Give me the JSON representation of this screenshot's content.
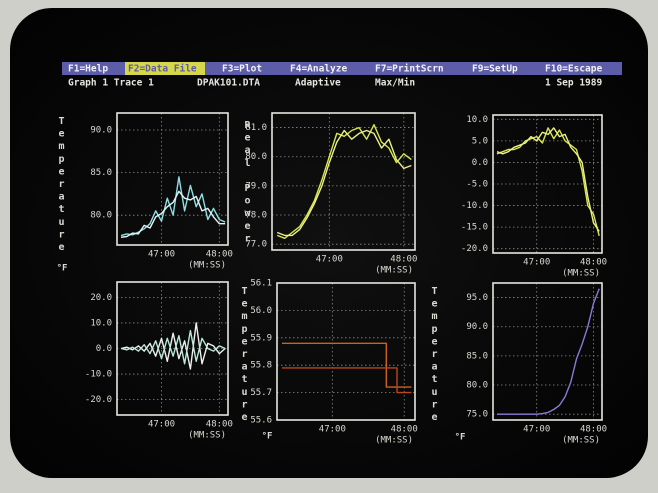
{
  "menu": {
    "items": [
      "F1=Help",
      "F2=Data File",
      "F3=Plot",
      "F4=Analyze",
      "F7=PrintScrn",
      "F9=SetUp",
      "F10=Escape"
    ],
    "active": 1
  },
  "status": [
    "Graph 1 Trace 1",
    "DPAK101.DTA",
    "Adaptive",
    "Max/Min",
    "1 Sep 1989"
  ],
  "chart_data": [
    {
      "type": "line",
      "ylabel": "Temperature",
      "yunit": "°F",
      "xlabel": "(MM:SS)",
      "x": [
        46.3,
        46.4,
        46.5,
        46.6,
        46.7,
        46.8,
        46.9,
        47.0,
        47.1,
        47.2,
        47.3,
        47.4,
        47.5,
        47.6,
        47.7,
        47.8,
        47.9,
        48.0,
        48.1
      ],
      "xlim": [
        46.23,
        48.15
      ],
      "xticks": [
        {
          "value": 47,
          "label": "47:00"
        },
        {
          "value": 48,
          "label": "48:00"
        }
      ],
      "ylim": [
        76.5,
        92
      ],
      "yticks": [
        {
          "value": 90,
          "label": "90.0"
        },
        {
          "value": 85,
          "label": "85.0"
        },
        {
          "value": 80,
          "label": "80.0"
        }
      ],
      "grid": true,
      "series": [
        {
          "color": "#8fe0e6",
          "values": [
            77.6,
            77.8,
            77.7,
            78.0,
            78.4,
            79.0,
            80.5,
            79.3,
            82.0,
            80.0,
            84.5,
            80.5,
            83.5,
            81.0,
            82.5,
            79.5,
            80.8,
            79.5,
            79.2
          ]
        },
        {
          "color": "#e8f4f4",
          "values": [
            77.4,
            77.5,
            77.9,
            77.8,
            78.8,
            78.5,
            79.8,
            80.2,
            81.0,
            81.5,
            82.8,
            82.0,
            81.8,
            82.2,
            80.5,
            80.8,
            79.8,
            79.0,
            79.0
          ]
        }
      ]
    },
    {
      "type": "line",
      "ylabel": "Real Power",
      "xlabel": "(MM:SS)",
      "x": [
        46.3,
        46.4,
        46.5,
        46.6,
        46.7,
        46.8,
        46.9,
        47.0,
        47.1,
        47.2,
        47.3,
        47.4,
        47.5,
        47.6,
        47.7,
        47.8,
        47.9,
        48.0,
        48.1
      ],
      "xlim": [
        46.23,
        48.15
      ],
      "xticks": [
        {
          "value": 47,
          "label": "47:00"
        },
        {
          "value": 48,
          "label": "48:00"
        }
      ],
      "ylim": [
        76.8,
        81.5
      ],
      "yticks": [
        {
          "value": 81,
          "label": "81.0"
        },
        {
          "value": 80,
          "label": "80.0"
        },
        {
          "value": 79,
          "label": "79.0"
        },
        {
          "value": 78,
          "label": "78.0"
        },
        {
          "value": 77,
          "label": "77.0"
        }
      ],
      "grid": true,
      "series": [
        {
          "color": "#d8e84a",
          "values": [
            77.3,
            77.2,
            77.4,
            77.6,
            78.0,
            78.5,
            79.2,
            80.0,
            80.8,
            80.7,
            80.9,
            81.0,
            80.6,
            81.1,
            80.5,
            80.3,
            79.8,
            80.1,
            79.9
          ]
        },
        {
          "color": "#eef08a",
          "values": [
            77.4,
            77.3,
            77.3,
            77.5,
            77.9,
            78.4,
            79.0,
            79.8,
            80.5,
            80.9,
            80.6,
            80.8,
            80.9,
            80.8,
            80.3,
            80.6,
            79.9,
            79.6,
            79.7
          ]
        }
      ]
    },
    {
      "type": "line",
      "xlabel": "(MM:SS)",
      "x": [
        46.3,
        46.4,
        46.5,
        46.6,
        46.7,
        46.8,
        46.9,
        47.0,
        47.1,
        47.2,
        47.3,
        47.4,
        47.5,
        47.6,
        47.7,
        47.8,
        47.9,
        48.0,
        48.1
      ],
      "xlim": [
        46.23,
        48.15
      ],
      "xticks": [
        {
          "value": 47,
          "label": "47:00"
        },
        {
          "value": 48,
          "label": "48:00"
        }
      ],
      "ylim": [
        -21,
        11
      ],
      "yticks": [
        {
          "value": 10,
          "label": "10.0"
        },
        {
          "value": 5,
          "label": "5.0"
        },
        {
          "value": 0,
          "label": "0.0"
        },
        {
          "value": -5,
          "label": "-5.0"
        },
        {
          "value": -10,
          "label": "-10.0"
        },
        {
          "value": -15,
          "label": "-15.0"
        },
        {
          "value": -20,
          "label": "-20.0"
        }
      ],
      "grid": true,
      "series": [
        {
          "color": "#d8e84a",
          "values": [
            2.0,
            2.5,
            3.0,
            3.0,
            3.5,
            5.0,
            5.5,
            6.0,
            4.5,
            8.0,
            5.5,
            7.5,
            5.0,
            4.0,
            3.0,
            -2.0,
            -10.0,
            -12.0,
            -17.0
          ]
        },
        {
          "color": "#eef08a",
          "values": [
            2.5,
            2.0,
            2.5,
            3.5,
            4.0,
            4.5,
            6.0,
            5.0,
            7.0,
            6.5,
            8.0,
            6.0,
            6.5,
            3.5,
            2.0,
            0.0,
            -8.0,
            -14.0,
            -16.0
          ]
        }
      ]
    },
    {
      "type": "line",
      "xlabel": "(MM:SS)",
      "x": [
        46.3,
        46.4,
        46.5,
        46.6,
        46.7,
        46.8,
        46.9,
        47.0,
        47.1,
        47.2,
        47.3,
        47.4,
        47.5,
        47.6,
        47.7,
        47.8,
        47.9,
        48.0,
        48.1
      ],
      "xlim": [
        46.23,
        48.15
      ],
      "xticks": [
        {
          "value": 47,
          "label": "47:00"
        },
        {
          "value": 48,
          "label": "48:00"
        }
      ],
      "ylim": [
        -26,
        26
      ],
      "yticks": [
        {
          "value": 20,
          "label": "20.0"
        },
        {
          "value": 10,
          "label": "10.0"
        },
        {
          "value": 0,
          "label": "0.0"
        },
        {
          "value": -10,
          "label": "-10.0"
        },
        {
          "value": -20,
          "label": "-20.0"
        }
      ],
      "grid": true,
      "series": [
        {
          "color": "#f0f0f0",
          "values": [
            0,
            0.5,
            -0.5,
            1,
            -1,
            2,
            -3,
            4,
            -5,
            6,
            -4,
            3,
            -8,
            10,
            -6,
            2,
            1,
            -2,
            0
          ]
        },
        {
          "color": "#b8e8d8",
          "values": [
            0,
            -0.5,
            0.5,
            -1,
            1.5,
            -2,
            3,
            -4,
            4,
            -3,
            5,
            -6,
            7,
            -5,
            4,
            0,
            -1,
            1,
            0
          ]
        }
      ]
    },
    {
      "type": "line",
      "ylabel": "Temperature",
      "yunit": "°F",
      "xlabel": "(MM:SS)",
      "x": [
        46.3,
        47.75,
        47.75,
        47.9,
        47.9,
        48.1
      ],
      "xlim": [
        46.23,
        48.15
      ],
      "xticks": [
        {
          "value": 47,
          "label": "47:00"
        },
        {
          "value": 48,
          "label": "48:00"
        }
      ],
      "ylim": [
        55.6,
        56.1
      ],
      "yticks": [
        56.1,
        {
          "value": 56,
          "label": "56.0"
        },
        55.9,
        55.8,
        55.7,
        55.6
      ],
      "grid": true,
      "series": [
        {
          "color": "#d0601e",
          "values": [
            55.88,
            55.88,
            55.72,
            55.72,
            55.72,
            55.72
          ]
        },
        {
          "color": "#b8481a",
          "values": [
            55.79,
            55.79,
            55.79,
            55.79,
            55.7,
            55.7
          ]
        }
      ]
    },
    {
      "type": "line",
      "ylabel": "Temperature",
      "yunit": "°F",
      "xlabel": "(MM:SS)",
      "x": [
        46.3,
        46.4,
        46.5,
        46.6,
        46.7,
        46.8,
        46.9,
        47.0,
        47.1,
        47.2,
        47.3,
        47.4,
        47.5,
        47.6,
        47.7,
        47.8,
        47.9,
        48.0,
        48.1
      ],
      "xlim": [
        46.23,
        48.15
      ],
      "xticks": [
        {
          "value": 47,
          "label": "47:00"
        },
        {
          "value": 48,
          "label": "48:00"
        }
      ],
      "ylim": [
        74,
        97.5
      ],
      "yticks": [
        {
          "value": 95,
          "label": "95.0"
        },
        {
          "value": 90,
          "label": "90.0"
        },
        {
          "value": 85,
          "label": "85.0"
        },
        {
          "value": 80,
          "label": "80.0"
        },
        {
          "value": 75,
          "label": "75.0"
        }
      ],
      "grid": true,
      "series": [
        {
          "color": "#8a7ad8",
          "values": [
            75,
            75,
            75,
            75,
            75,
            75,
            75,
            75,
            75.1,
            75.3,
            75.8,
            76.5,
            78,
            80.5,
            84.5,
            87,
            90,
            94,
            96.5
          ]
        }
      ]
    }
  ]
}
